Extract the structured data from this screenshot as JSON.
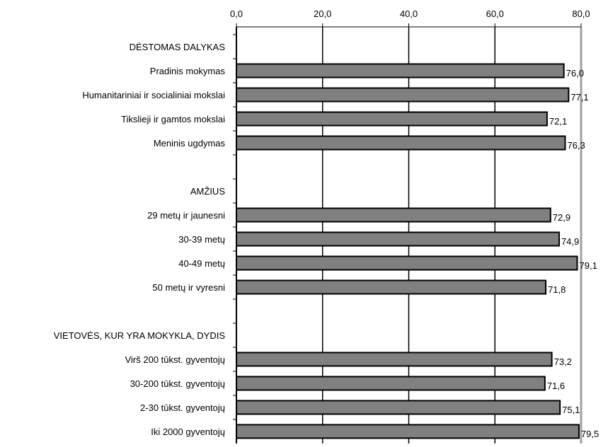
{
  "chart_data": {
    "type": "bar",
    "orientation": "horizontal",
    "title": "",
    "xlabel": "",
    "ylabel": "",
    "xlim": [
      0,
      80
    ],
    "x_ticks": [
      "0,0",
      "20,0",
      "40,0",
      "60,0",
      "80,0"
    ],
    "x_tick_values": [
      0,
      20,
      40,
      60,
      80
    ],
    "grid": true,
    "legend": "none",
    "colors": {
      "bar_fill": "#808080",
      "bar_stroke": "#000000",
      "gridline": "#000000",
      "right_axis": "#a0a0a0"
    },
    "rows": [
      {
        "kind": "header",
        "label": "DĖSTOMAS DALYKAS"
      },
      {
        "kind": "bar",
        "label": "Pradinis mokymas",
        "value": 76.0,
        "value_label": "76,0"
      },
      {
        "kind": "bar",
        "label": "Humanitariniai  ir socialiniai mokslai",
        "value": 77.1,
        "value_label": "77,1"
      },
      {
        "kind": "bar",
        "label": "Tikslieji ir gamtos mokslai",
        "value": 72.1,
        "value_label": "72,1"
      },
      {
        "kind": "bar",
        "label": "Meninis ugdymas",
        "value": 76.3,
        "value_label": "76,3"
      },
      {
        "kind": "blank",
        "label": ""
      },
      {
        "kind": "header",
        "label": "AMŽIUS"
      },
      {
        "kind": "bar",
        "label": "29 metų ir jaunesni",
        "value": 72.9,
        "value_label": "72,9"
      },
      {
        "kind": "bar",
        "label": "30-39 metų",
        "value": 74.9,
        "value_label": "74,9"
      },
      {
        "kind": "bar",
        "label": "40-49 metų",
        "value": 79.1,
        "value_label": "79,1"
      },
      {
        "kind": "bar",
        "label": "50 metų ir vyresni",
        "value": 71.8,
        "value_label": "71,8"
      },
      {
        "kind": "blank",
        "label": ""
      },
      {
        "kind": "header",
        "label": "VIETOVĖS, KUR YRA MOKYKLA, DYDIS"
      },
      {
        "kind": "bar",
        "label": "Virš 200 tūkst. gyventojų",
        "value": 73.2,
        "value_label": "73,2"
      },
      {
        "kind": "bar",
        "label": "30-200 tūkst. gyventojų",
        "value": 71.6,
        "value_label": "71,6"
      },
      {
        "kind": "bar",
        "label": "2-30 tūkst. gyventojų",
        "value": 75.1,
        "value_label": "75,1"
      },
      {
        "kind": "bar",
        "label": "Iki 2000 gyventojų",
        "value": 79.5,
        "value_label": "79,5"
      }
    ]
  }
}
